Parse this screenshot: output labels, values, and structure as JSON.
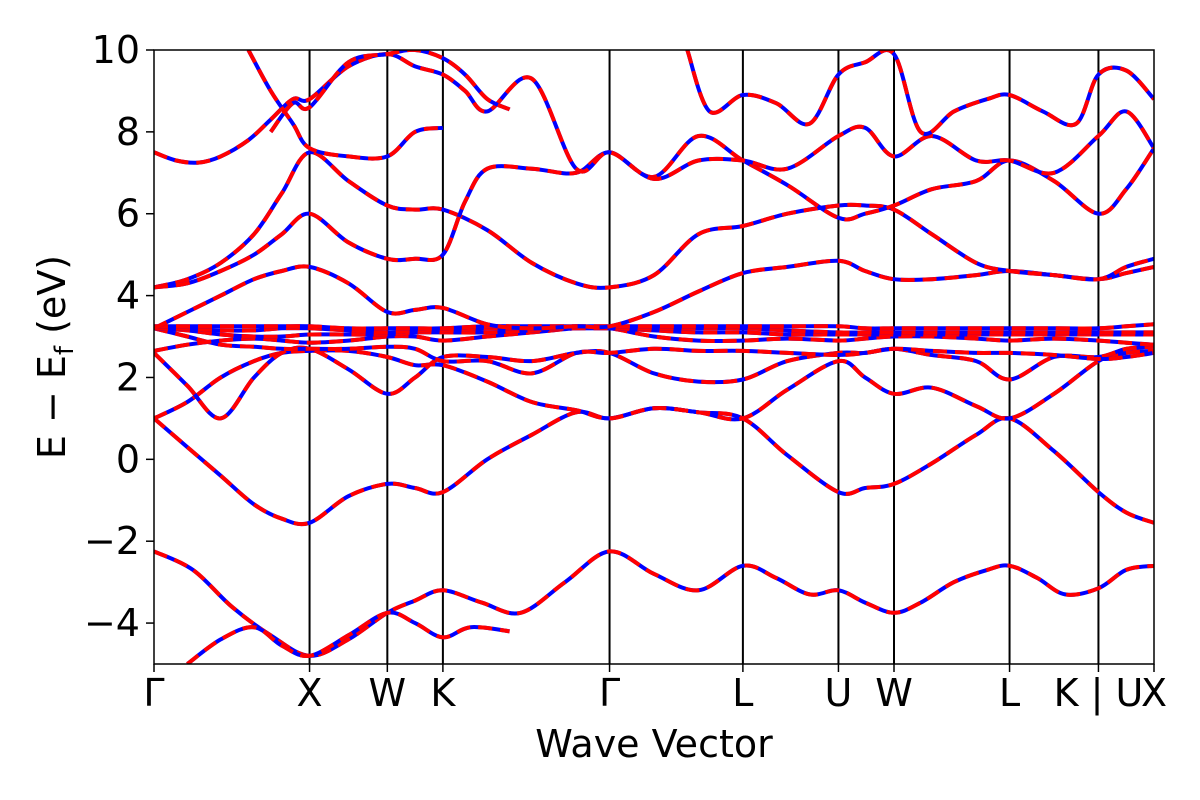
{
  "chart_data": {
    "type": "line",
    "xlabel": "Wave Vector",
    "ylabel_main": "E − E",
    "ylabel_sub": "f",
    "ylabel_unit": " (eV)",
    "ylim": [
      -5,
      10
    ],
    "xlim": [
      0,
      9.0
    ],
    "yticks": [
      -4,
      -2,
      0,
      2,
      4,
      6,
      8,
      10
    ],
    "ytick_labels": [
      "−4",
      "−2",
      "0",
      "2",
      "4",
      "6",
      "8",
      "10"
    ],
    "high_symmetry_points": [
      {
        "label": "Γ",
        "x": 0.0
      },
      {
        "label": "X",
        "x": 1.4
      },
      {
        "label": "W",
        "x": 2.1
      },
      {
        "label": "K",
        "x": 2.6
      },
      {
        "label": "Γ",
        "x": 4.1
      },
      {
        "label": "L",
        "x": 5.3
      },
      {
        "label": "U",
        "x": 6.16
      },
      {
        "label": "W",
        "x": 6.66
      },
      {
        "label": "L",
        "x": 7.7
      },
      {
        "label": "K | U",
        "x": 8.5
      },
      {
        "label": "X",
        "x": 9.0
      }
    ],
    "grid": false,
    "series_styles": [
      {
        "color": "#0000ff",
        "dash": "none",
        "width": 4
      },
      {
        "color": "#ff0000",
        "dash": "14 8",
        "width": 4
      }
    ],
    "series": [
      {
        "x": [
          0,
          0.35,
          0.7,
          1.05,
          1.4,
          1.75,
          2.1,
          2.35,
          2.6,
          2.95,
          3.3,
          3.7,
          4.1,
          4.5,
          4.9,
          5.3,
          5.6,
          5.9,
          6.16,
          6.4,
          6.66,
          6.9,
          7.2,
          7.5,
          7.7,
          7.95,
          8.2,
          8.5,
          8.75,
          9.0
        ],
        "y": [
          -2.25,
          -2.7,
          -3.6,
          -4.3,
          -4.8,
          -4.4,
          -3.75,
          -3.45,
          -3.2,
          -3.5,
          -3.75,
          -3.0,
          -2.25,
          -2.8,
          -3.2,
          -2.6,
          -2.9,
          -3.3,
          -3.2,
          -3.5,
          -3.75,
          -3.5,
          -3.0,
          -2.7,
          -2.6,
          -2.9,
          -3.3,
          -3.15,
          -2.7,
          -2.6
        ]
      },
      {
        "x": [
          0.3,
          0.6,
          0.9,
          1.15,
          1.4,
          1.75,
          2.1,
          2.35,
          2.6,
          2.85,
          3.2
        ],
        "y": [
          -5.0,
          -4.4,
          -4.1,
          -4.55,
          -4.8,
          -4.3,
          -3.75,
          -4.0,
          -4.35,
          -4.1,
          -4.2
        ]
      },
      {
        "x": [
          0,
          0.3,
          0.6,
          0.9,
          1.15,
          1.4,
          1.75,
          2.1,
          2.35,
          2.6,
          3.0,
          3.4,
          3.8,
          4.1,
          4.5,
          4.9,
          5.3,
          5.7,
          6.16,
          6.4,
          6.66,
          7.0,
          7.4,
          7.7,
          8.1,
          8.5,
          8.75,
          9.0
        ],
        "y": [
          1.0,
          0.3,
          -0.4,
          -1.1,
          -1.45,
          -1.55,
          -0.9,
          -0.6,
          -0.7,
          -0.8,
          0.0,
          0.6,
          1.15,
          1.0,
          1.25,
          1.15,
          1.0,
          0.1,
          -0.8,
          -0.7,
          -0.6,
          -0.1,
          0.6,
          1.0,
          0.2,
          -0.8,
          -1.3,
          -1.55
        ]
      },
      {
        "x": [
          0,
          0.3,
          0.6,
          0.9,
          1.15,
          1.4,
          1.75,
          2.1,
          2.35,
          2.6,
          3.0,
          3.4,
          3.8,
          4.1,
          4.5,
          4.9,
          5.3,
          5.7,
          6.16,
          6.4,
          6.66,
          7.0,
          7.4,
          7.7,
          8.1,
          8.5,
          8.75,
          9.0
        ],
        "y": [
          1.0,
          1.4,
          2.0,
          2.4,
          2.6,
          2.65,
          2.65,
          2.5,
          2.3,
          2.3,
          1.9,
          1.4,
          1.2,
          1.0,
          1.25,
          1.15,
          1.0,
          1.7,
          2.4,
          2.0,
          1.6,
          1.75,
          1.3,
          1.0,
          1.6,
          2.4,
          2.6,
          2.65
        ]
      },
      {
        "x": [
          0,
          0.3,
          0.6,
          0.9,
          1.15,
          1.4,
          1.75,
          2.1,
          2.35,
          2.6,
          3.0,
          3.4,
          3.8,
          4.1,
          4.5,
          4.9,
          5.3,
          5.7,
          6.16,
          6.4,
          6.66,
          7.0,
          7.4,
          7.7,
          8.1,
          8.5,
          8.75,
          9.0
        ],
        "y": [
          2.6,
          1.8,
          1.0,
          2.0,
          2.6,
          2.7,
          2.2,
          1.6,
          2.0,
          2.5,
          2.5,
          2.4,
          2.6,
          2.6,
          2.1,
          1.9,
          1.95,
          2.4,
          2.6,
          2.6,
          2.7,
          2.55,
          2.4,
          1.95,
          2.5,
          2.5,
          2.7,
          2.75
        ]
      },
      {
        "x": [
          0,
          0.3,
          0.6,
          0.9,
          1.15,
          1.4,
          1.75,
          2.1,
          2.35,
          2.6,
          3.0,
          3.4,
          3.8,
          4.1,
          4.5,
          4.9,
          5.3,
          5.7,
          6.16,
          6.4,
          6.66,
          7.0,
          7.4,
          7.7,
          8.1,
          8.5,
          8.75,
          9.0
        ],
        "y": [
          3.2,
          3.0,
          2.8,
          2.75,
          2.7,
          2.7,
          2.7,
          2.75,
          2.7,
          2.4,
          2.4,
          2.1,
          2.6,
          2.6,
          2.7,
          2.65,
          2.65,
          2.6,
          2.55,
          2.6,
          2.7,
          2.65,
          2.6,
          2.6,
          2.55,
          2.45,
          2.5,
          2.6
        ]
      },
      {
        "x": [
          0,
          0.3,
          0.6,
          0.9,
          1.15,
          1.4,
          1.75,
          2.1,
          2.35,
          2.6,
          3.0,
          3.4,
          3.8,
          4.1,
          4.5,
          4.9,
          5.3,
          5.7,
          6.16,
          6.4,
          6.66,
          7.0,
          7.4,
          7.7,
          8.1,
          8.5,
          8.75,
          9.0
        ],
        "y": [
          2.65,
          2.8,
          2.9,
          2.95,
          2.9,
          2.85,
          2.9,
          3.0,
          3.0,
          2.9,
          3.0,
          3.1,
          3.2,
          3.2,
          3.0,
          2.9,
          2.9,
          2.95,
          2.9,
          2.95,
          3.0,
          3.0,
          2.95,
          2.9,
          2.95,
          2.9,
          2.85,
          2.8
        ]
      },
      {
        "x": [
          0,
          0.3,
          0.6,
          0.9,
          1.15,
          1.4,
          1.75,
          2.1,
          2.35,
          2.6,
          3.0,
          3.4,
          3.8,
          4.1,
          4.5,
          4.9,
          5.3,
          5.7,
          6.16,
          6.4,
          6.66,
          7.0,
          7.4,
          7.7,
          8.1,
          8.5,
          8.75,
          9.0
        ],
        "y": [
          3.2,
          3.15,
          3.05,
          3.0,
          3.0,
          3.05,
          3.05,
          3.05,
          3.1,
          3.1,
          3.1,
          3.15,
          3.2,
          3.2,
          3.15,
          3.1,
          3.1,
          3.05,
          3.05,
          3.05,
          3.05,
          3.05,
          3.05,
          3.05,
          3.05,
          3.05,
          3.05,
          3.05
        ]
      },
      {
        "x": [
          0,
          0.3,
          0.6,
          0.9,
          1.15,
          1.4,
          1.75,
          2.1,
          2.35,
          2.6,
          3.0,
          3.4,
          3.8,
          4.1,
          4.5,
          4.9,
          5.3,
          5.7,
          6.16,
          6.4,
          6.66,
          7.0,
          7.4,
          7.7,
          8.1,
          8.5,
          8.75,
          9.0
        ],
        "y": [
          3.2,
          3.2,
          3.15,
          3.15,
          3.2,
          3.2,
          3.15,
          3.1,
          3.15,
          3.15,
          3.2,
          3.2,
          3.2,
          3.2,
          3.2,
          3.2,
          3.2,
          3.15,
          3.1,
          3.1,
          3.1,
          3.1,
          3.1,
          3.1,
          3.1,
          3.1,
          3.1,
          3.1
        ]
      },
      {
        "x": [
          0,
          0.3,
          0.6,
          0.9,
          1.15,
          1.4,
          1.75,
          2.1,
          2.35,
          2.6,
          3.0,
          3.4,
          3.8,
          4.1,
          4.5,
          4.9,
          5.3,
          5.7,
          6.16,
          6.4,
          6.66,
          7.0,
          7.4,
          7.7,
          8.1,
          8.5,
          8.75,
          9.0
        ],
        "y": [
          3.25,
          3.25,
          3.25,
          3.25,
          3.25,
          3.25,
          3.2,
          3.2,
          3.2,
          3.2,
          3.25,
          3.25,
          3.25,
          3.25,
          3.25,
          3.25,
          3.25,
          3.25,
          3.25,
          3.2,
          3.2,
          3.2,
          3.2,
          3.2,
          3.2,
          3.2,
          3.25,
          3.3
        ]
      },
      {
        "x": [
          0,
          0.3,
          0.6,
          0.9,
          1.15,
          1.4,
          1.75,
          2.1,
          2.35,
          2.6,
          3.0,
          3.4,
          3.8,
          4.1,
          4.5,
          4.9,
          5.3,
          5.7,
          6.16,
          6.4,
          6.66,
          7.0,
          7.4,
          7.7,
          8.1,
          8.5,
          8.75,
          9.0
        ],
        "y": [
          3.2,
          3.6,
          4.0,
          4.4,
          4.6,
          4.7,
          4.3,
          3.6,
          3.65,
          3.7,
          3.3,
          3.2,
          3.25,
          3.25,
          3.6,
          4.1,
          4.55,
          4.7,
          4.85,
          4.6,
          4.4,
          4.4,
          4.5,
          4.6,
          4.5,
          4.4,
          4.55,
          4.7
        ]
      },
      {
        "x": [
          0,
          0.3,
          0.6,
          0.9,
          1.15,
          1.4,
          1.75,
          2.1,
          2.35,
          2.6,
          3.0,
          3.4,
          3.8,
          4.1,
          4.5,
          4.9,
          5.3,
          5.7,
          6.16,
          6.4,
          6.66,
          7.0,
          7.4,
          7.7,
          8.1,
          8.5,
          8.75,
          9.0
        ],
        "y": [
          4.2,
          4.4,
          4.8,
          5.5,
          6.5,
          7.5,
          6.8,
          6.2,
          6.1,
          6.1,
          5.6,
          4.8,
          4.3,
          4.2,
          4.5,
          5.5,
          5.7,
          6.0,
          6.2,
          6.2,
          6.1,
          5.5,
          4.8,
          4.6,
          4.5,
          4.4,
          4.7,
          4.9
        ]
      },
      {
        "x": [
          0,
          0.3,
          0.6,
          0.9,
          1.15,
          1.4,
          1.75,
          2.1,
          2.35,
          2.6,
          2.8,
          3.0,
          3.4,
          3.8,
          4.1,
          4.5,
          4.9,
          5.3,
          5.7,
          6.16,
          6.4,
          6.66,
          7.0,
          7.4,
          7.7,
          8.1,
          8.5,
          8.75,
          9.0
        ],
        "y": [
          4.2,
          4.3,
          4.6,
          5.0,
          5.5,
          6.0,
          5.3,
          4.9,
          4.9,
          5.0,
          6.3,
          7.1,
          7.1,
          7.0,
          7.5,
          6.9,
          7.9,
          7.3,
          6.7,
          5.9,
          6.0,
          6.2,
          6.6,
          6.8,
          7.3,
          6.8,
          6.0,
          6.6,
          7.6
        ]
      },
      {
        "x": [
          0,
          0.2,
          0.4,
          0.6,
          0.85,
          1.05,
          1.25,
          1.4,
          1.75,
          2.1,
          2.35,
          2.6,
          2.8,
          3.0,
          3.4,
          3.8,
          4.1,
          4.5,
          4.9,
          5.3,
          5.7,
          6.16,
          6.4,
          6.66,
          7.0,
          7.4,
          7.7,
          8.1,
          8.5,
          8.75,
          9.0
        ],
        "y": [
          7.5,
          7.3,
          7.25,
          7.4,
          7.8,
          8.3,
          8.8,
          8.8,
          9.6,
          9.9,
          9.6,
          9.4,
          9.0,
          8.5,
          9.3,
          7.1,
          7.5,
          6.85,
          7.3,
          7.3,
          7.1,
          7.9,
          8.1,
          7.4,
          7.9,
          7.3,
          7.3,
          7.0,
          7.9,
          8.5,
          7.6
        ]
      },
      {
        "x": [
          0.85,
          1.05,
          1.25,
          1.4,
          1.75,
          2.1,
          2.35,
          2.6
        ],
        "y": [
          10.0,
          9.0,
          8.2,
          7.6,
          7.4,
          7.4,
          8.0,
          8.1
        ]
      },
      {
        "x": [
          1.05,
          1.25,
          1.4,
          1.75,
          2.1,
          2.35,
          2.6,
          2.8,
          3.0,
          3.2
        ],
        "y": [
          8.0,
          8.7,
          8.6,
          9.7,
          9.9,
          10.0,
          9.8,
          9.4,
          8.8,
          8.55
        ]
      },
      {
        "x": [
          4.8,
          5.0,
          5.3,
          5.6,
          5.9,
          6.16,
          6.4,
          6.66,
          6.9,
          7.2,
          7.5,
          7.7,
          8.0,
          8.3,
          8.5,
          8.75,
          9.0
        ],
        "y": [
          10.0,
          8.5,
          8.9,
          8.7,
          8.2,
          9.4,
          9.7,
          9.9,
          8.0,
          8.5,
          8.8,
          8.9,
          8.5,
          8.2,
          9.4,
          9.5,
          8.8
        ]
      }
    ]
  }
}
